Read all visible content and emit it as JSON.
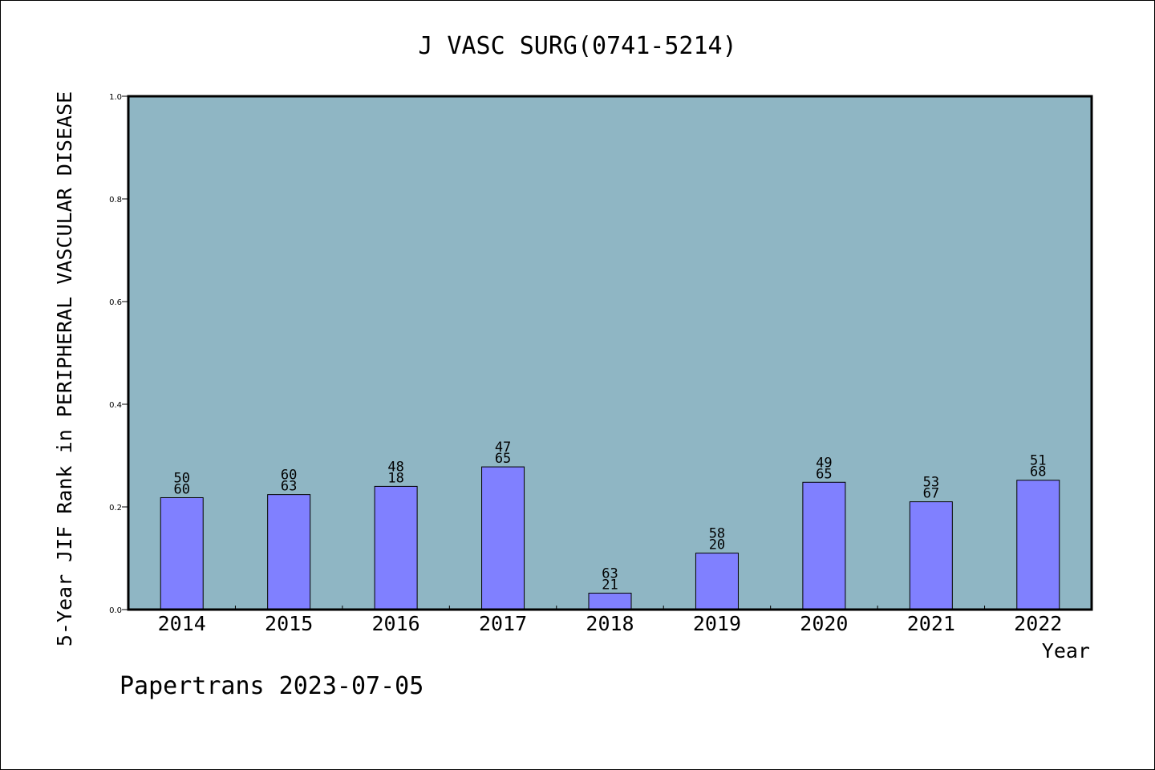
{
  "chart_data": {
    "type": "bar",
    "title": "J VASC SURG(0741-5214)",
    "xlabel": "Year",
    "ylabel": "5-Year JIF Rank in PERIPHERAL VASCULAR DISEASE",
    "ylim": [
      0,
      1.0
    ],
    "yticks": [
      "0.0",
      "0.2",
      "0.4",
      "0.6",
      "0.8",
      "1.0"
    ],
    "categories": [
      "2014",
      "2015",
      "2016",
      "2017",
      "2018",
      "2019",
      "2020",
      "2021",
      "2022"
    ],
    "values": [
      0.218,
      0.224,
      0.24,
      0.278,
      0.032,
      0.11,
      0.248,
      0.21,
      0.252
    ],
    "labels_top": [
      "50",
      "60",
      "48",
      "47",
      "63",
      "58",
      "49",
      "53",
      "51"
    ],
    "labels_bottom": [
      "60",
      "63",
      "18",
      "65",
      "21",
      "20",
      "65",
      "67",
      "68"
    ],
    "grid": false,
    "colors": {
      "plot_background": "#8fb6c4",
      "bar_fill": "#8080ff",
      "bar_stroke": "#000000"
    }
  },
  "footer": {
    "text": "Papertrans 2023-07-05"
  }
}
